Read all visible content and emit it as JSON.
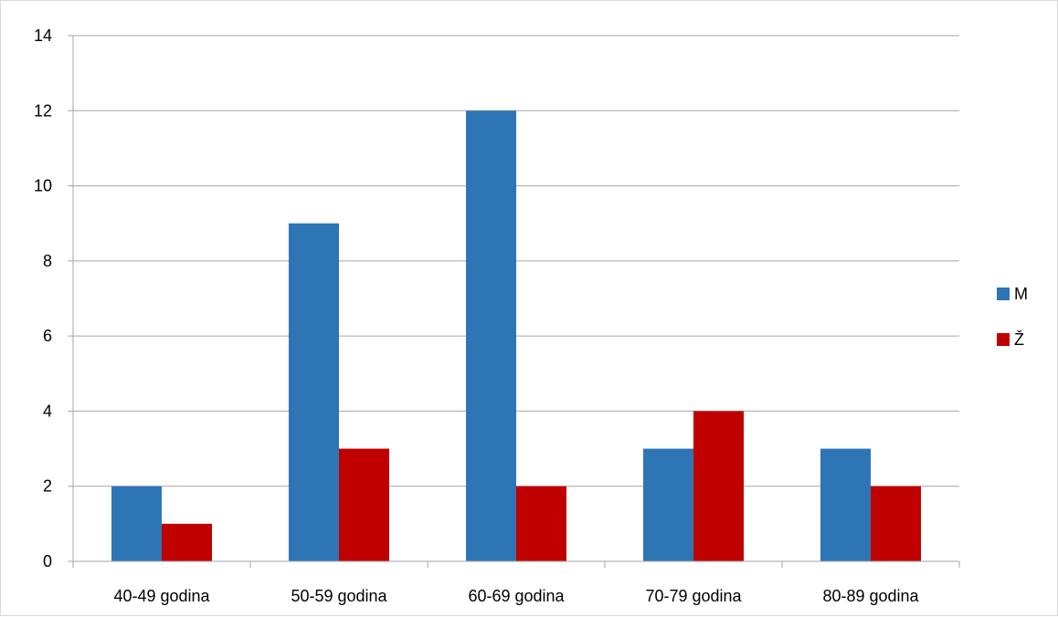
{
  "chart_data": {
    "type": "bar",
    "categories": [
      "40-49 godina",
      "50-59 godina",
      "60-69 godina",
      "70-79 godina",
      "80-89 godina"
    ],
    "series": [
      {
        "name": "M",
        "values": [
          2,
          9,
          12,
          3,
          3
        ],
        "color": "#2E75B6"
      },
      {
        "name": "Ž",
        "values": [
          1,
          3,
          2,
          4,
          2
        ],
        "color": "#C00000"
      }
    ],
    "ylim": [
      0,
      14
    ],
    "yticks": [
      0,
      2,
      4,
      6,
      8,
      10,
      12,
      14
    ],
    "grid": true,
    "legend_position": "right"
  }
}
